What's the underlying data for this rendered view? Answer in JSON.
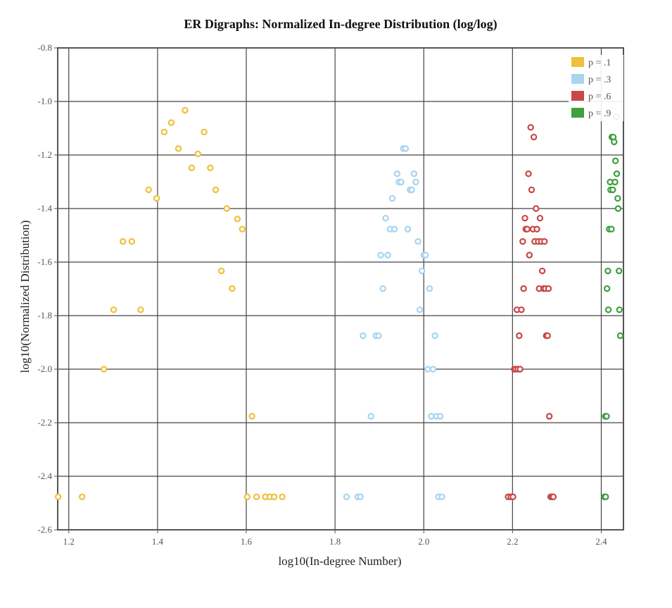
{
  "chart_data": {
    "type": "scatter",
    "title": "ER Digraphs: Normalized In-degree Distribution (log/log)",
    "xlabel": "log10(In-degree Number)",
    "ylabel": "log10(Normalized Distribution)",
    "xlim": [
      1.175,
      2.45
    ],
    "ylim": [
      -2.6,
      -0.8
    ],
    "x_ticks": [
      1.2,
      1.4,
      1.6,
      1.8,
      2.0,
      2.2,
      2.4
    ],
    "x_tick_labels": [
      "1.2",
      "1.4",
      "1.6",
      "1.8",
      "2.0",
      "2.2",
      "2.4"
    ],
    "y_ticks": [
      -0.8,
      -1.0,
      -1.2,
      -1.4,
      -1.6,
      -1.8,
      -2.0,
      -2.2,
      -2.4,
      -2.6
    ],
    "y_tick_labels": [
      "-0.8",
      "-1.0",
      "-1.2",
      "-1.4",
      "-1.6",
      "-1.8",
      "-2.0",
      "-2.2",
      "-2.4",
      "-2.6"
    ],
    "grid": true,
    "legend_position": "top-right",
    "series": [
      {
        "name": "p = .1",
        "color": "#f0c03a",
        "points": [
          [
            1.176,
            -2.477
          ],
          [
            1.23,
            -2.477
          ],
          [
            1.279,
            -2.0
          ],
          [
            1.301,
            -1.778
          ],
          [
            1.322,
            -1.523
          ],
          [
            1.342,
            -1.523
          ],
          [
            1.362,
            -1.778
          ],
          [
            1.38,
            -1.33
          ],
          [
            1.398,
            -1.362
          ],
          [
            1.415,
            -1.114
          ],
          [
            1.431,
            -1.079
          ],
          [
            1.447,
            -1.176
          ],
          [
            1.462,
            -1.033
          ],
          [
            1.477,
            -1.248
          ],
          [
            1.491,
            -1.196
          ],
          [
            1.505,
            -1.114
          ],
          [
            1.519,
            -1.248
          ],
          [
            1.531,
            -1.33
          ],
          [
            1.544,
            -1.633
          ],
          [
            1.556,
            -1.4
          ],
          [
            1.568,
            -1.699
          ],
          [
            1.58,
            -1.439
          ],
          [
            1.591,
            -1.477
          ],
          [
            1.602,
            -2.477
          ],
          [
            1.613,
            -2.176
          ],
          [
            1.623,
            -2.477
          ],
          [
            1.643,
            -2.477
          ],
          [
            1.653,
            -2.477
          ],
          [
            1.663,
            -2.477
          ],
          [
            1.681,
            -2.477
          ]
        ]
      },
      {
        "name": "p = .3",
        "color": "#a8d4f0",
        "points": [
          [
            1.826,
            -2.477
          ],
          [
            1.851,
            -2.477
          ],
          [
            1.857,
            -2.477
          ],
          [
            1.863,
            -1.875
          ],
          [
            1.881,
            -2.176
          ],
          [
            1.892,
            -1.875
          ],
          [
            1.898,
            -1.875
          ],
          [
            1.903,
            -1.574
          ],
          [
            1.908,
            -1.699
          ],
          [
            1.914,
            -1.436
          ],
          [
            1.919,
            -1.574
          ],
          [
            1.924,
            -1.477
          ],
          [
            1.929,
            -1.362
          ],
          [
            1.934,
            -1.477
          ],
          [
            1.94,
            -1.27
          ],
          [
            1.944,
            -1.301
          ],
          [
            1.949,
            -1.301
          ],
          [
            1.954,
            -1.176
          ],
          [
            1.959,
            -1.176
          ],
          [
            1.964,
            -1.477
          ],
          [
            1.969,
            -1.33
          ],
          [
            1.973,
            -1.33
          ],
          [
            1.978,
            -1.27
          ],
          [
            1.982,
            -1.301
          ],
          [
            1.987,
            -1.523
          ],
          [
            1.991,
            -1.778
          ],
          [
            1.996,
            -1.633
          ],
          [
            2.0,
            -1.574
          ],
          [
            2.004,
            -1.574
          ],
          [
            2.009,
            -2.0
          ],
          [
            2.013,
            -1.699
          ],
          [
            2.017,
            -2.176
          ],
          [
            2.021,
            -2.0
          ],
          [
            2.025,
            -1.875
          ],
          [
            2.029,
            -2.176
          ],
          [
            2.033,
            -2.477
          ],
          [
            2.037,
            -2.176
          ],
          [
            2.041,
            -2.477
          ]
        ]
      },
      {
        "name": "p = .6",
        "color": "#c84848",
        "points": [
          [
            2.19,
            -2.477
          ],
          [
            2.196,
            -2.477
          ],
          [
            2.201,
            -2.477
          ],
          [
            2.204,
            -2.0
          ],
          [
            2.207,
            -2.0
          ],
          [
            2.21,
            -1.778
          ],
          [
            2.212,
            -2.0
          ],
          [
            2.215,
            -1.875
          ],
          [
            2.217,
            -2.0
          ],
          [
            2.22,
            -1.778
          ],
          [
            2.223,
            -1.523
          ],
          [
            2.225,
            -1.699
          ],
          [
            2.228,
            -1.436
          ],
          [
            2.23,
            -1.477
          ],
          [
            2.233,
            -1.477
          ],
          [
            2.236,
            -1.27
          ],
          [
            2.238,
            -1.574
          ],
          [
            2.241,
            -1.097
          ],
          [
            2.243,
            -1.33
          ],
          [
            2.246,
            -1.477
          ],
          [
            2.248,
            -1.133
          ],
          [
            2.25,
            -1.523
          ],
          [
            2.253,
            -1.4
          ],
          [
            2.255,
            -1.477
          ],
          [
            2.258,
            -1.523
          ],
          [
            2.26,
            -1.699
          ],
          [
            2.262,
            -1.436
          ],
          [
            2.265,
            -1.523
          ],
          [
            2.267,
            -1.633
          ],
          [
            2.27,
            -1.699
          ],
          [
            2.272,
            -1.523
          ],
          [
            2.274,
            -1.699
          ],
          [
            2.276,
            -1.875
          ],
          [
            2.279,
            -1.875
          ],
          [
            2.281,
            -1.699
          ],
          [
            2.283,
            -2.176
          ],
          [
            2.286,
            -2.477
          ],
          [
            2.288,
            -2.477
          ],
          [
            2.29,
            -2.477
          ],
          [
            2.292,
            -2.477
          ]
        ]
      },
      {
        "name": "p = .9",
        "color": "#3fa03f",
        "points": [
          [
            2.407,
            -2.477
          ],
          [
            2.409,
            -2.176
          ],
          [
            2.41,
            -2.477
          ],
          [
            2.412,
            -2.176
          ],
          [
            2.413,
            -1.699
          ],
          [
            2.415,
            -1.633
          ],
          [
            2.416,
            -1.778
          ],
          [
            2.418,
            -1.477
          ],
          [
            2.42,
            -1.301
          ],
          [
            2.421,
            -1.33
          ],
          [
            2.423,
            -1.477
          ],
          [
            2.424,
            -1.133
          ],
          [
            2.426,
            -1.33
          ],
          [
            2.427,
            -1.133
          ],
          [
            2.429,
            -1.151
          ],
          [
            2.431,
            -1.301
          ],
          [
            2.432,
            -1.222
          ],
          [
            2.434,
            -1.057
          ],
          [
            2.435,
            -1.27
          ],
          [
            2.437,
            -1.362
          ],
          [
            2.438,
            -1.4
          ],
          [
            2.44,
            -1.633
          ],
          [
            2.441,
            -1.778
          ],
          [
            2.443,
            -1.875
          ]
        ]
      }
    ]
  }
}
